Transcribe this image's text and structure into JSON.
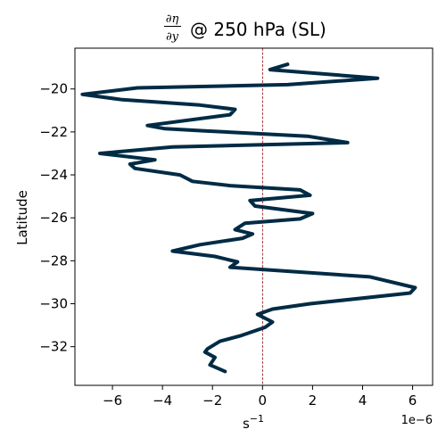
{
  "chart_data": {
    "type": "line",
    "title": {
      "numerator": "∂η",
      "denominator": "∂y",
      "text": "@ 250 hPa (SL)"
    },
    "xlabel": "s",
    "xlabel_exponent": "−1",
    "ylabel": "Latitude",
    "x_offset_label": "1e−6",
    "xlim": [
      -7.5,
      6.8
    ],
    "ylim": [
      -33.8,
      -18.1
    ],
    "xticks": [
      {
        "value": -6,
        "label": "−6"
      },
      {
        "value": -4,
        "label": "−4"
      },
      {
        "value": -2,
        "label": "−2"
      },
      {
        "value": 0,
        "label": "0"
      },
      {
        "value": 2,
        "label": "2"
      },
      {
        "value": 4,
        "label": "4"
      },
      {
        "value": 6,
        "label": "6"
      }
    ],
    "yticks": [
      {
        "value": -20,
        "label": "−20"
      },
      {
        "value": -22,
        "label": "−22"
      },
      {
        "value": -24,
        "label": "−24"
      },
      {
        "value": -26,
        "label": "−26"
      },
      {
        "value": -28,
        "label": "−28"
      },
      {
        "value": -30,
        "label": "−30"
      },
      {
        "value": -32,
        "label": "−32"
      }
    ],
    "reference_line": {
      "x": 0,
      "color": "#8b0000",
      "style": "dashed"
    },
    "series": [
      {
        "color": "#002b45",
        "points": [
          [
            1.0,
            -18.85
          ],
          [
            0.3,
            -19.1
          ],
          [
            4.6,
            -19.5
          ],
          [
            1.0,
            -19.8
          ],
          [
            -5.0,
            -19.95
          ],
          [
            -7.2,
            -20.25
          ],
          [
            -5.6,
            -20.5
          ],
          [
            -2.5,
            -20.75
          ],
          [
            -1.1,
            -20.95
          ],
          [
            -1.3,
            -21.2
          ],
          [
            -4.6,
            -21.7
          ],
          [
            -3.9,
            -21.85
          ],
          [
            -2.3,
            -21.95
          ],
          [
            1.8,
            -22.2
          ],
          [
            3.4,
            -22.5
          ],
          [
            -3.6,
            -22.7
          ],
          [
            -6.5,
            -23.0
          ],
          [
            -4.3,
            -23.3
          ],
          [
            -5.3,
            -23.5
          ],
          [
            -5.1,
            -23.7
          ],
          [
            -3.3,
            -24.0
          ],
          [
            -2.8,
            -24.3
          ],
          [
            -1.3,
            -24.5
          ],
          [
            1.5,
            -24.7
          ],
          [
            1.9,
            -24.95
          ],
          [
            -0.5,
            -25.2
          ],
          [
            -0.3,
            -25.45
          ],
          [
            2.0,
            -25.8
          ],
          [
            1.5,
            -26.05
          ],
          [
            -0.7,
            -26.25
          ],
          [
            -1.1,
            -26.55
          ],
          [
            -0.4,
            -26.75
          ],
          [
            -0.8,
            -26.95
          ],
          [
            -2.5,
            -27.25
          ],
          [
            -3.6,
            -27.55
          ],
          [
            -1.9,
            -27.8
          ],
          [
            -1.0,
            -28.05
          ],
          [
            -1.3,
            -28.3
          ],
          [
            4.3,
            -28.75
          ],
          [
            6.1,
            -29.25
          ],
          [
            5.9,
            -29.5
          ],
          [
            1.9,
            -30.0
          ],
          [
            0.4,
            -30.25
          ],
          [
            -0.2,
            -30.5
          ],
          [
            0.4,
            -30.85
          ],
          [
            0.1,
            -31.1
          ],
          [
            -0.9,
            -31.5
          ],
          [
            -1.7,
            -31.75
          ],
          [
            -2.2,
            -32.1
          ],
          [
            -2.3,
            -32.25
          ],
          [
            -1.9,
            -32.5
          ],
          [
            -2.1,
            -32.85
          ],
          [
            -1.5,
            -33.15
          ]
        ]
      }
    ]
  }
}
